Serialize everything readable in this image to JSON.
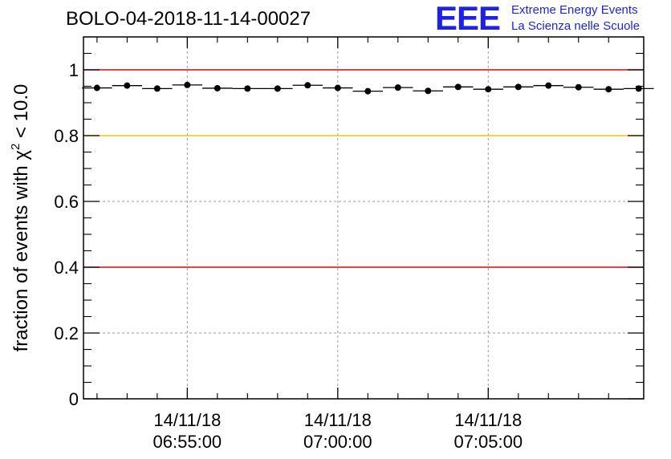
{
  "header": {
    "run_title": "BOLO-04-2018-11-14-00027"
  },
  "logo": {
    "mark": "EEE",
    "line1": "Extreme Energy Events",
    "line2": "La Scienza nelle Scuole",
    "color": "#1e22e6"
  },
  "chart_data": {
    "type": "scatter",
    "ylabel": "fraction of events with χ² < 10.0",
    "ylabel_parts": [
      "fraction of events with χ",
      "2",
      " < 10.0"
    ],
    "ylim": [
      0,
      1.1
    ],
    "yticks": [
      0,
      0.2,
      0.4,
      0.6,
      0.8,
      1
    ],
    "ytick_labels": [
      "0",
      "0.2",
      "0.4",
      "0.6",
      "0.8",
      "1"
    ],
    "xlim": [
      "06:51:33",
      "07:10:10"
    ],
    "xticks": [
      "06:55:00",
      "07:00:00",
      "07:05:00"
    ],
    "xtick_labels": [
      [
        "14/11/18",
        "06:55:00"
      ],
      [
        "14/11/18",
        "07:00:00"
      ],
      [
        "14/11/18",
        "07:05:00"
      ]
    ],
    "grid": true,
    "reference_lines": [
      {
        "y": 1.0,
        "color": "#e8000b"
      },
      {
        "y": 0.8,
        "color": "#f5c400"
      },
      {
        "y": 0.4,
        "color": "#e8000b"
      }
    ],
    "marker_color": "#000000",
    "series": [
      {
        "x": [
          "06:52:00",
          "06:53:00",
          "06:54:00",
          "06:55:00",
          "06:56:00",
          "06:57:00",
          "06:58:00",
          "06:59:00",
          "07:00:00",
          "07:01:00",
          "07:02:00",
          "07:03:00",
          "07:04:00",
          "07:05:00",
          "07:06:00",
          "07:07:00",
          "07:08:00",
          "07:09:00",
          "07:10:00"
        ],
        "values": [
          0.945,
          0.952,
          0.943,
          0.954,
          0.944,
          0.943,
          0.943,
          0.953,
          0.945,
          0.935,
          0.946,
          0.936,
          0.948,
          0.941,
          0.948,
          0.952,
          0.947,
          0.941,
          0.943
        ],
        "bin_half_width_seconds": 30
      }
    ]
  }
}
